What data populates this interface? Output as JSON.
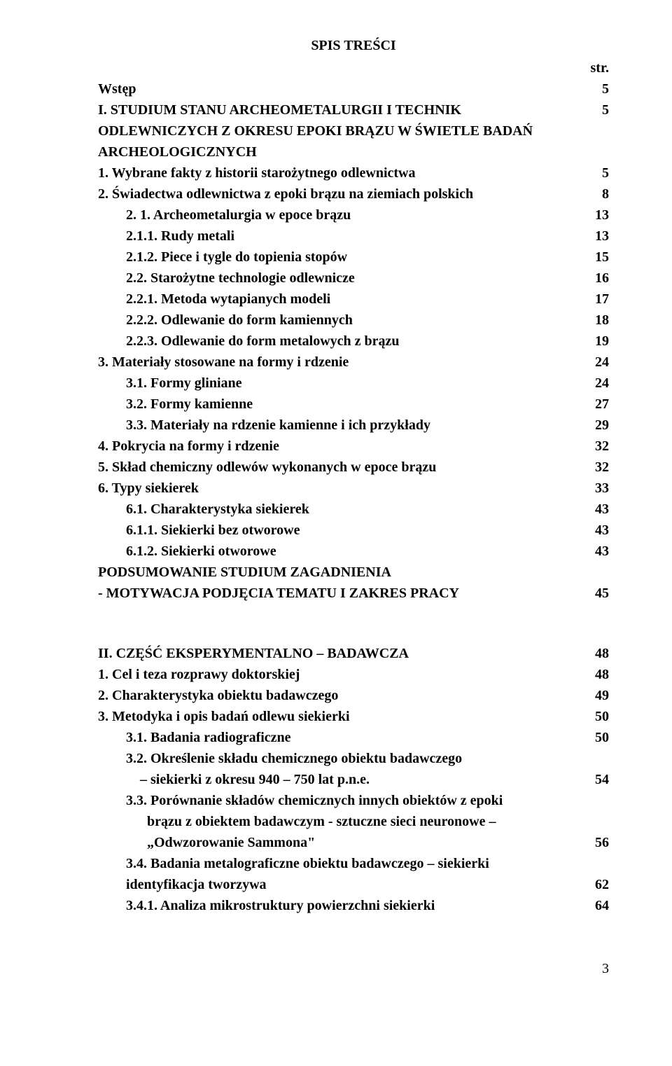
{
  "title": "SPIS TREŚCI",
  "str_label": "str.",
  "rows": [
    {
      "label": "Wstęp",
      "page": "5",
      "indent": 0
    },
    {
      "label": "I. STUDIUM STANU ARCHEOMETALURGII I TECHNIK ODLEWNICZYCH Z OKRESU EPOKI BRĄZU W ŚWIETLE BADAŃ ARCHEOLOGICZNYCH",
      "page": "5",
      "indent": 0
    },
    {
      "label": "1. Wybrane fakty z historii starożytnego odlewnictwa",
      "page": "5",
      "indent": 0
    },
    {
      "label": "2. Świadectwa odlewnictwa z epoki brązu na ziemiach polskich",
      "page": "8",
      "indent": 0
    },
    {
      "label": "2. 1. Archeometalurgia w epoce brązu",
      "page": "13",
      "indent": 1
    },
    {
      "label": "2.1.1. Rudy metali",
      "page": "13",
      "indent": 1
    },
    {
      "label": "2.1.2. Piece i tygle do topienia stopów",
      "page": "15",
      "indent": 1
    },
    {
      "label": "2.2. Starożytne technologie odlewnicze",
      "page": "16",
      "indent": 1
    },
    {
      "label": "2.2.1. Metoda wytapianych modeli",
      "page": "17",
      "indent": 1
    },
    {
      "label": "2.2.2. Odlewanie do form kamiennych",
      "page": "18",
      "indent": 1
    },
    {
      "label": "2.2.3. Odlewanie do form metalowych z brązu",
      "page": "19",
      "indent": 1
    },
    {
      "label": "3. Materiały stosowane na formy i rdzenie",
      "page": "24",
      "indent": 0
    },
    {
      "label": "3.1. Formy gliniane",
      "page": "24",
      "indent": 1
    },
    {
      "label": "3.2. Formy kamienne",
      "page": "27",
      "indent": 1
    },
    {
      "label": "3.3. Materiały na rdzenie kamienne  i  ich przykłady",
      "page": "29",
      "indent": 1
    },
    {
      "label": "4. Pokrycia na formy i rdzenie",
      "page": "32",
      "indent": 0
    },
    {
      "label": "5. Skład chemiczny odlewów wykonanych w epoce brązu",
      "page": "32",
      "indent": 0
    },
    {
      "label": "6. Typy siekierek",
      "page": "33",
      "indent": 0
    },
    {
      "label": "6.1. Charakterystyka siekierek",
      "page": "43",
      "indent": 1
    },
    {
      "label": "6.1.1. Siekierki bez otworowe",
      "page": "43",
      "indent": 1
    },
    {
      "label": "6.1.2. Siekierki otworowe",
      "page": "43",
      "indent": 1
    },
    {
      "label": "PODSUMOWANIE STUDIUM ZAGADNIENIA",
      "page": "",
      "indent": 0
    },
    {
      "label": "- MOTYWACJA PODJĘCIA TEMATU I ZAKRES PRACY",
      "page": "45",
      "indent": 0
    }
  ],
  "rows2": [
    {
      "label": "II. CZĘŚĆ EKSPERYMENTALNO – BADAWCZA",
      "page": "48",
      "indent": 0
    },
    {
      "label": "1. Cel i teza rozprawy doktorskiej",
      "page": "48",
      "indent": 0
    },
    {
      "label": "2. Charakterystyka obiektu badawczego",
      "page": "49",
      "indent": 0
    },
    {
      "label": "3. Metodyka i opis badań odlewu siekierki",
      "page": "50",
      "indent": 0
    },
    {
      "label": "3.1. Badania radiograficzne",
      "page": "50",
      "indent": 1
    },
    {
      "label": "3.2. Określenie składu chemicznego obiektu badawczego",
      "page": "",
      "indent": 1
    },
    {
      "label": "–   siekierki z okresu 940 – 750 lat p.n.e.",
      "page": "54",
      "indent": 2
    },
    {
      "label": "3.3. Porównanie składów chemicznych innych obiektów z epoki",
      "page": "",
      "indent": 1
    },
    {
      "label": "brązu z obiektem badawczym - sztuczne sieci neuronowe –",
      "page": "",
      "indent": 3
    },
    {
      "label": "„Odwzorowanie Sammona\"",
      "page": "56",
      "indent": 3
    },
    {
      "label": "3.4. Badania metalograficzne obiektu badawczego – siekierki",
      "page": "",
      "indent": 1
    },
    {
      "label": "identyfikacja tworzywa",
      "page": "62",
      "indent": 1
    },
    {
      "label": "3.4.1. Analiza mikrostruktury powierzchni siekierki",
      "page": "64",
      "indent": 1
    }
  ],
  "page_number": "3"
}
